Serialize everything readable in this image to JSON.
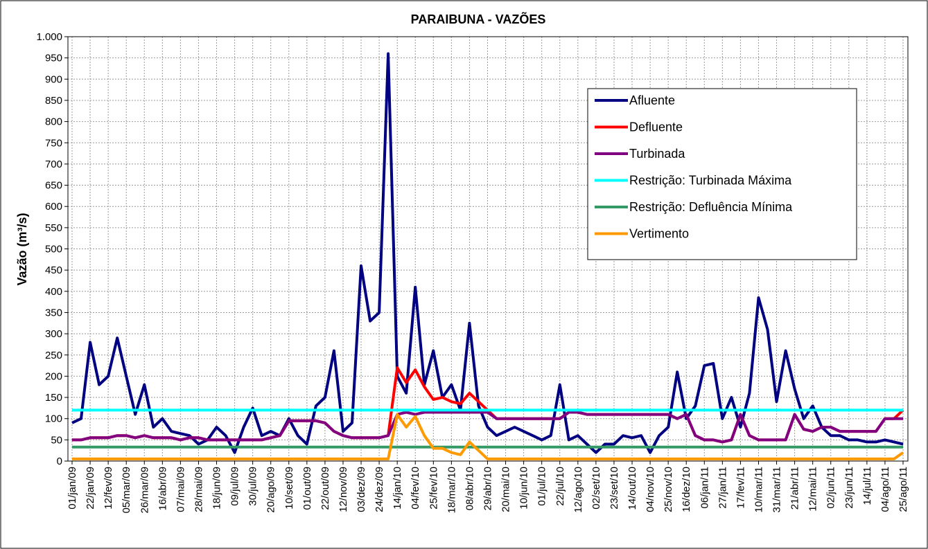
{
  "chart_data": {
    "type": "line",
    "title": "PARAIBUNA - VAZÕES",
    "y_label": "Vazão (m³/s)",
    "categories": [
      "01/jan/09",
      null,
      "22/jan/09",
      null,
      "12/fev/09",
      null,
      "05/mar/09",
      null,
      "26/mar/09",
      null,
      "16/abr/09",
      null,
      "07/mai/09",
      null,
      "28/mai/09",
      null,
      "18/jun/09",
      null,
      "09/jul/09",
      null,
      "30/jul/09",
      null,
      "20/ago/09",
      null,
      "10/set/09",
      null,
      "01/out/09",
      null,
      "22/out/09",
      null,
      "12/nov/09",
      null,
      "03/dez/09",
      null,
      "24/dez/09",
      null,
      "14/jan/10",
      null,
      "04/fev/10",
      null,
      "25/fev/10",
      null,
      "18/mar/10",
      null,
      "08/abr/10",
      null,
      "29/abr/10",
      null,
      "20/mai/10",
      null,
      "10/jun/10",
      null,
      "01/jul/10",
      null,
      "22/jul/10",
      null,
      "12/ago/10",
      null,
      "02/set/10",
      null,
      "23/set/10",
      null,
      "14/out/10",
      null,
      "04/nov/10",
      null,
      "25/nov/10",
      null,
      "16/dez/10",
      null,
      "06/jan/11",
      null,
      "27/jan/11",
      null,
      "17/fev/11",
      null,
      "10/mar/11",
      null,
      "31/mar/11",
      null,
      "21/abr/11",
      null,
      "12/mai/11",
      null,
      "02/jun/11",
      null,
      "23/jun/11",
      null,
      "14/jul/11",
      null,
      "04/ago/11",
      null,
      "25/ago/11"
    ],
    "series": [
      {
        "name": "Afluente",
        "color": "#000080",
        "values": [
          90,
          100,
          280,
          180,
          200,
          290,
          200,
          110,
          180,
          80,
          100,
          70,
          65,
          60,
          40,
          50,
          80,
          60,
          20,
          80,
          125,
          60,
          70,
          60,
          100,
          60,
          40,
          130,
          150,
          260,
          70,
          90,
          460,
          330,
          350,
          960,
          200,
          160,
          410,
          180,
          260,
          150,
          180,
          120,
          325,
          130,
          80,
          60,
          70,
          80,
          70,
          60,
          50,
          60,
          180,
          50,
          60,
          40,
          20,
          40,
          40,
          60,
          55,
          60,
          20,
          60,
          80,
          210,
          100,
          130,
          225,
          230,
          100,
          150,
          80,
          160,
          385,
          310,
          140,
          260,
          170,
          100,
          130,
          80,
          60,
          60,
          50,
          50,
          45,
          45,
          50,
          45,
          40
        ]
      },
      {
        "name": "Defluente",
        "color": "#ff0000",
        "values": [
          50,
          50,
          55,
          55,
          55,
          60,
          60,
          55,
          60,
          55,
          55,
          55,
          50,
          55,
          55,
          50,
          50,
          50,
          50,
          50,
          50,
          50,
          55,
          60,
          95,
          95,
          95,
          95,
          90,
          70,
          60,
          55,
          55,
          55,
          55,
          60,
          220,
          185,
          215,
          175,
          145,
          150,
          140,
          135,
          160,
          140,
          120,
          100,
          100,
          100,
          100,
          100,
          100,
          100,
          100,
          115,
          115,
          110,
          110,
          110,
          110,
          110,
          110,
          110,
          110,
          110,
          110,
          100,
          110,
          60,
          50,
          50,
          45,
          50,
          110,
          60,
          50,
          50,
          50,
          50,
          110,
          75,
          70,
          80,
          80,
          70,
          70,
          70,
          70,
          70,
          100,
          100,
          120
        ]
      },
      {
        "name": "Turbinada",
        "color": "#800080",
        "values": [
          50,
          50,
          55,
          55,
          55,
          60,
          60,
          55,
          60,
          55,
          55,
          55,
          50,
          55,
          55,
          50,
          50,
          50,
          50,
          50,
          50,
          50,
          55,
          60,
          95,
          95,
          95,
          95,
          90,
          70,
          60,
          55,
          55,
          55,
          55,
          60,
          110,
          115,
          110,
          115,
          115,
          115,
          115,
          115,
          115,
          115,
          115,
          100,
          100,
          100,
          100,
          100,
          100,
          100,
          100,
          115,
          115,
          110,
          110,
          110,
          110,
          110,
          110,
          110,
          110,
          110,
          110,
          100,
          110,
          60,
          50,
          50,
          45,
          50,
          110,
          60,
          50,
          50,
          50,
          50,
          110,
          75,
          70,
          80,
          80,
          70,
          70,
          70,
          70,
          70,
          100,
          100,
          100
        ]
      },
      {
        "name": "Restrição: Turbinada Máxima",
        "color": "#00ffff",
        "values": [
          120,
          120,
          120,
          120,
          120,
          120,
          120,
          120,
          120,
          120,
          120,
          120,
          120,
          120,
          120,
          120,
          120,
          120,
          120,
          120,
          120,
          120,
          120,
          120,
          120,
          120,
          120,
          120,
          120,
          120,
          120,
          120,
          120,
          120,
          120,
          120,
          120,
          120,
          120,
          120,
          120,
          120,
          120,
          120,
          120,
          120,
          120,
          120,
          120,
          120,
          120,
          120,
          120,
          120,
          120,
          120,
          120,
          120,
          120,
          120,
          120,
          120,
          120,
          120,
          120,
          120,
          120,
          120,
          120,
          120,
          120,
          120,
          120,
          120,
          120,
          120,
          120,
          120,
          120,
          120,
          120,
          120,
          120,
          120,
          120,
          120,
          120,
          120,
          120,
          120,
          120,
          120,
          120
        ]
      },
      {
        "name": "Restrição: Defluência Mínima",
        "color": "#339966",
        "values": [
          33,
          33,
          33,
          33,
          33,
          33,
          33,
          33,
          33,
          33,
          33,
          33,
          33,
          33,
          33,
          33,
          33,
          33,
          33,
          33,
          33,
          33,
          33,
          33,
          33,
          33,
          33,
          33,
          33,
          33,
          33,
          33,
          33,
          33,
          33,
          33,
          33,
          33,
          33,
          33,
          33,
          33,
          33,
          33,
          33,
          33,
          33,
          33,
          33,
          33,
          33,
          33,
          33,
          33,
          33,
          33,
          33,
          33,
          33,
          33,
          33,
          33,
          33,
          33,
          33,
          33,
          33,
          33,
          33,
          33,
          33,
          33,
          33,
          33,
          33,
          33,
          33,
          33,
          33,
          33,
          33,
          33,
          33,
          33,
          33,
          33,
          33,
          33,
          33,
          33,
          33,
          33,
          33
        ]
      },
      {
        "name": "Vertimento",
        "color": "#ff9900",
        "values": [
          5,
          5,
          5,
          5,
          5,
          5,
          5,
          5,
          5,
          5,
          5,
          5,
          5,
          5,
          5,
          5,
          5,
          5,
          5,
          5,
          5,
          5,
          5,
          5,
          5,
          5,
          5,
          5,
          5,
          5,
          5,
          5,
          5,
          5,
          5,
          5,
          110,
          80,
          105,
          60,
          30,
          30,
          20,
          15,
          45,
          25,
          5,
          5,
          5,
          5,
          5,
          5,
          5,
          5,
          5,
          5,
          5,
          5,
          5,
          5,
          5,
          5,
          5,
          5,
          5,
          5,
          5,
          5,
          5,
          5,
          5,
          5,
          5,
          5,
          5,
          5,
          5,
          5,
          5,
          5,
          5,
          5,
          5,
          5,
          5,
          5,
          5,
          5,
          5,
          5,
          5,
          5,
          20
        ]
      }
    ],
    "ylim": [
      0,
      1000
    ],
    "yticks": [
      0,
      50,
      100,
      150,
      200,
      250,
      300,
      350,
      400,
      450,
      500,
      550,
      600,
      650,
      700,
      750,
      800,
      850,
      900,
      950,
      {
        "value": 1000,
        "label": "1.000"
      }
    ],
    "grid": true,
    "legend": "upper right"
  }
}
